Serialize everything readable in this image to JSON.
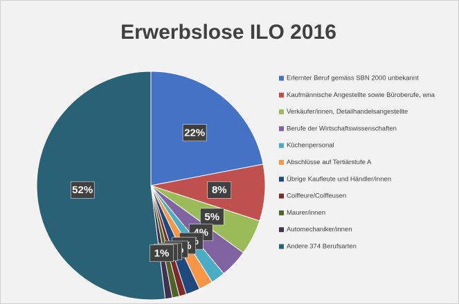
{
  "chart_data": {
    "type": "pie",
    "title": "Erwerbslose ILO 2016",
    "categories": [
      "Erlernter Beruf gemäss SBN 2000 unbekannt",
      "Kaufmännische Angestellte sowie Büroberufe, wna",
      "Verkäufer/innen, Detailhandelsangestellte",
      "Berufe der Wirtschaftswissenschaften",
      "Küchenpersonal",
      "Abschlüsse auf Tertiärstufe A",
      "Übrige Kaufleute und Händler/innen",
      "Coiffeure/Coiffeusen",
      "Maurer/innen",
      "Automechaniker/innen",
      "Andere 374 Berufsarten"
    ],
    "values": [
      22,
      8,
      5,
      4,
      2,
      2,
      2,
      1,
      1,
      1,
      52
    ],
    "value_labels": [
      "22%",
      "8%",
      "5%",
      "4%",
      "2%",
      "2%",
      "2%",
      "1%",
      "1%",
      "1%",
      "52%"
    ],
    "colors": [
      "#4472c4",
      "#c0504d",
      "#9bbb59",
      "#8064a2",
      "#4bacc6",
      "#f79646",
      "#1f497d",
      "#7b2a28",
      "#4f6228",
      "#3f3151",
      "#2a6275"
    ],
    "legend": "right"
  }
}
